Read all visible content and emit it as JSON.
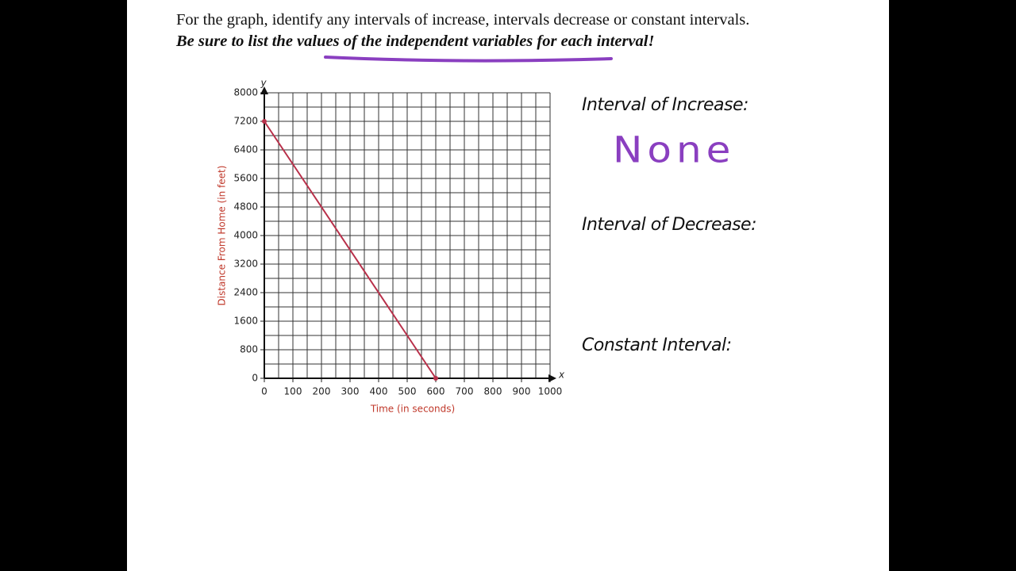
{
  "header": {
    "line1": "For the graph, identify any intervals of increase, intervals decrease or constant intervals.",
    "line2": "Be sure to list the values of the independent variables for each interval!"
  },
  "answers": {
    "increase_label": "Interval of Increase:",
    "increase_answer": "None",
    "decrease_label": "Interval of Decrease:",
    "constant_label": "Constant Interval:"
  },
  "chart_data": {
    "type": "line",
    "x_label": "Time (in seconds)",
    "y_label": "Distance From Home (in feet)",
    "x_axis_name": "x",
    "y_axis_name": "y",
    "x": [
      0,
      600
    ],
    "values": [
      7200,
      0
    ],
    "color": "#b8304a",
    "xlim": [
      0,
      1000
    ],
    "ylim": [
      0,
      8000
    ],
    "xticks": [
      0,
      100,
      200,
      300,
      400,
      500,
      600,
      700,
      800,
      900,
      1000
    ],
    "yticks": [
      0,
      800,
      1600,
      2400,
      3200,
      4000,
      4800,
      5600,
      6400,
      7200,
      8000
    ],
    "grid": true
  }
}
